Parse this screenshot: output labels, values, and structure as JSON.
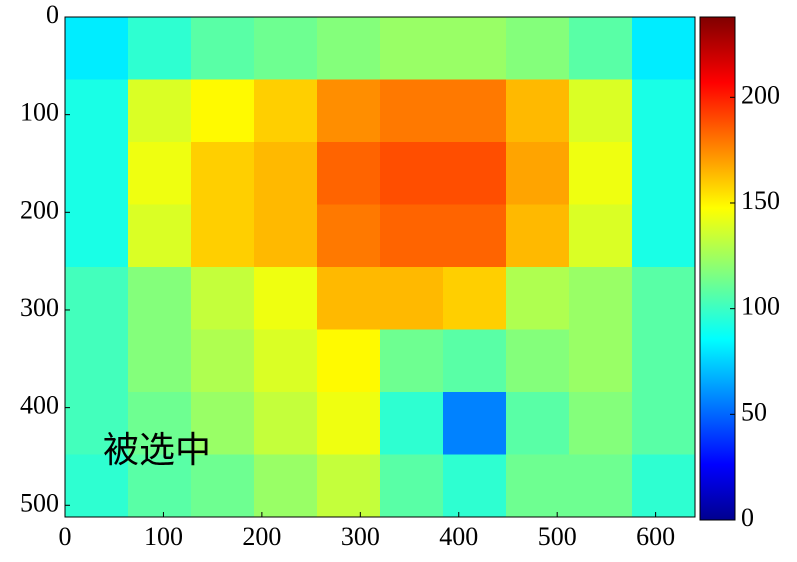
{
  "chart_data": {
    "type": "heatmap",
    "annotation": "被选中",
    "xedges": [
      0,
      64,
      128,
      192,
      256,
      320,
      384,
      448,
      512,
      576,
      640
    ],
    "yedges": [
      0,
      64,
      128,
      192,
      256,
      320,
      384,
      448,
      512
    ],
    "z": [
      [
        85,
        100,
        110,
        115,
        120,
        125,
        125,
        120,
        110,
        85
      ],
      [
        95,
        140,
        150,
        160,
        175,
        180,
        180,
        165,
        140,
        95
      ],
      [
        95,
        145,
        160,
        165,
        185,
        190,
        190,
        170,
        145,
        95
      ],
      [
        95,
        140,
        160,
        165,
        180,
        185,
        185,
        165,
        140,
        95
      ],
      [
        105,
        120,
        135,
        145,
        165,
        165,
        160,
        130,
        125,
        110
      ],
      [
        105,
        120,
        130,
        140,
        150,
        115,
        110,
        120,
        125,
        110
      ],
      [
        105,
        115,
        125,
        135,
        145,
        100,
        60,
        110,
        120,
        110
      ],
      [
        100,
        110,
        115,
        125,
        135,
        110,
        100,
        115,
        115,
        100
      ]
    ],
    "xlim": [
      0,
      640
    ],
    "ylim": [
      0,
      512
    ],
    "yaxis_inverted": true,
    "xticks": [
      0,
      100,
      200,
      300,
      400,
      500,
      600
    ],
    "yticks": [
      0,
      100,
      200,
      300,
      400,
      500
    ],
    "colormap": "jet",
    "clim": [
      0,
      238
    ],
    "cticks": [
      0,
      50,
      100,
      150,
      200
    ]
  }
}
